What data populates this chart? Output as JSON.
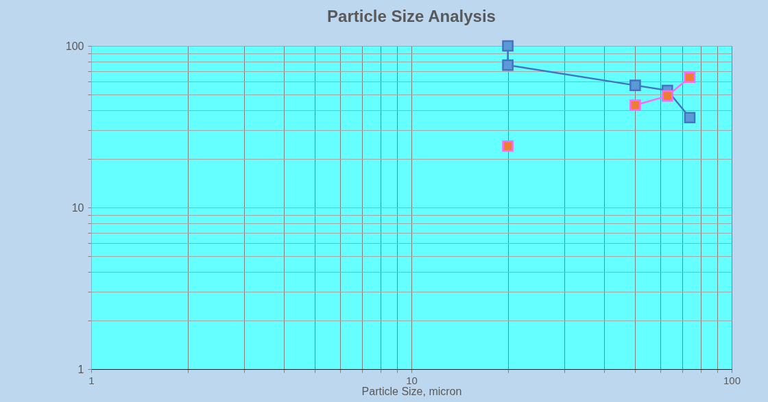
{
  "chart_data": {
    "type": "line",
    "title": "Particle Size Analysis",
    "xlabel": "Particle Size, micron",
    "log": "xy",
    "marker": "square",
    "grid": true,
    "xlim": [
      1,
      100
    ],
    "ylim": [
      1,
      100
    ],
    "xticks": [
      1,
      {
        "value": 2,
        "label": null
      },
      {
        "value": 3,
        "label": null
      },
      {
        "value": 4,
        "label": null
      },
      {
        "value": 5,
        "label": null
      },
      {
        "value": 6,
        "label": null
      },
      {
        "value": 7,
        "label": null
      },
      {
        "value": 8,
        "label": null
      },
      {
        "value": 9,
        "label": null
      },
      10,
      {
        "value": 20,
        "label": null
      },
      {
        "value": 30,
        "label": null
      },
      {
        "value": 40,
        "label": null
      },
      {
        "value": 50,
        "label": null
      },
      {
        "value": 60,
        "label": null
      },
      {
        "value": 70,
        "label": null
      },
      {
        "value": 80,
        "label": null
      },
      {
        "value": 90,
        "label": null
      },
      100
    ],
    "yticks": [
      1,
      {
        "value": 2,
        "label": null
      },
      {
        "value": 3,
        "label": null
      },
      {
        "value": 4,
        "label": null
      },
      {
        "value": 5,
        "label": null
      },
      {
        "value": 6,
        "label": null
      },
      {
        "value": 7,
        "label": null
      },
      {
        "value": 8,
        "label": null
      },
      {
        "value": 9,
        "label": null
      },
      10,
      {
        "value": 20,
        "label": null
      },
      {
        "value": 30,
        "label": null
      },
      {
        "value": 40,
        "label": null
      },
      {
        "value": 50,
        "label": null
      },
      {
        "value": 60,
        "label": null
      },
      {
        "value": 70,
        "label": null
      },
      {
        "value": 80,
        "label": null
      },
      {
        "value": 90,
        "label": null
      },
      100
    ],
    "series": [
      {
        "color": "#4472c4",
        "x": [
          20,
          20,
          50,
          63,
          74
        ],
        "values": [
          100,
          76,
          57,
          53,
          36
        ]
      },
      {
        "color": "#ff66ff",
        "x": [
          50,
          63,
          74
        ],
        "values": [
          43,
          49,
          64
        ]
      },
      {
        "type": "scatter",
        "color": "#ff66ff",
        "x": [
          20
        ],
        "values": [
          24
        ]
      }
    ]
  }
}
